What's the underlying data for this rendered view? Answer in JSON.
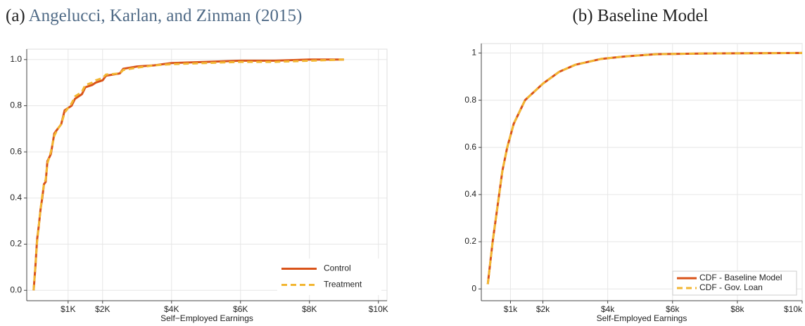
{
  "chart_data": [
    {
      "type": "line",
      "panel_label": "(a)",
      "title": "Angelucci, Karlan, and Zinman (2015)",
      "xlabel": "Self−Employed Earnings",
      "x": [
        0,
        50,
        100,
        150,
        200,
        250,
        300,
        350,
        400,
        500,
        600,
        700,
        800,
        900,
        1000,
        1100,
        1200,
        1400,
        1500,
        1700,
        1800,
        2000,
        2100,
        2500,
        2600,
        3000,
        3500,
        4000,
        5000,
        6000,
        7000,
        8000,
        9000
      ],
      "series": [
        {
          "name": "Control",
          "color": "#d95319",
          "line_style": "solid",
          "values": [
            0,
            0.1,
            0.22,
            0.28,
            0.35,
            0.4,
            0.46,
            0.47,
            0.56,
            0.59,
            0.68,
            0.7,
            0.72,
            0.78,
            0.79,
            0.8,
            0.83,
            0.85,
            0.88,
            0.89,
            0.9,
            0.91,
            0.93,
            0.94,
            0.96,
            0.97,
            0.975,
            0.985,
            0.99,
            0.995,
            0.995,
            1,
            1
          ]
        },
        {
          "name": "Treatment",
          "color": "#f2b632",
          "line_style": "dashed",
          "values": [
            0,
            0.1,
            0.21,
            0.28,
            0.35,
            0.41,
            0.46,
            0.48,
            0.55,
            0.6,
            0.67,
            0.7,
            0.72,
            0.77,
            0.79,
            0.81,
            0.84,
            0.86,
            0.89,
            0.9,
            0.91,
            0.92,
            0.935,
            0.94,
            0.955,
            0.965,
            0.975,
            0.98,
            0.985,
            0.99,
            0.99,
            0.995,
            1
          ]
        }
      ],
      "xlim": [
        -200,
        10250
      ],
      "ylim": [
        -0.045,
        1.045
      ],
      "xticks": [
        {
          "value": 1000,
          "label": "$1K"
        },
        {
          "value": 2000,
          "label": "$2K"
        },
        {
          "value": 4000,
          "label": "$4K"
        },
        {
          "value": 6000,
          "label": "$6K"
        },
        {
          "value": 8000,
          "label": "$8K"
        },
        {
          "value": 10000,
          "label": "$10K"
        }
      ],
      "yticks": [
        {
          "value": 0,
          "label": "0.0"
        },
        0.2,
        0.4,
        0.6,
        0.8,
        {
          "value": 1,
          "label": "1.0"
        }
      ],
      "grid": true,
      "legend": "lower right"
    },
    {
      "type": "line",
      "panel_label": "(b)",
      "title": "Baseline Model",
      "xlabel": "Self-Employed Earnings",
      "x": [
        300,
        450,
        600,
        750,
        900,
        1100,
        1450,
        2000,
        2500,
        3000,
        3800,
        4500,
        5500,
        7000,
        10000
      ],
      "series": [
        {
          "name": "CDF - Baseline Model",
          "color": "#d95319",
          "line_style": "solid",
          "values": [
            0.02,
            0.2,
            0.35,
            0.5,
            0.6,
            0.7,
            0.8,
            0.87,
            0.92,
            0.95,
            0.975,
            0.985,
            0.995,
            0.998,
            1
          ]
        },
        {
          "name": "CDF - Gov. Loan",
          "color": "#f2b632",
          "line_style": "dashed",
          "values": [
            0.02,
            0.2,
            0.35,
            0.5,
            0.6,
            0.7,
            0.8,
            0.87,
            0.92,
            0.95,
            0.975,
            0.985,
            0.995,
            0.998,
            1
          ]
        }
      ],
      "xlim": [
        100,
        10000
      ],
      "ylim": [
        -0.05,
        1.04
      ],
      "xticks": [
        {
          "value": 1000,
          "label": "$1k"
        },
        {
          "value": 2000,
          "label": "$2k"
        },
        {
          "value": 4000,
          "label": "$4k"
        },
        {
          "value": 6000,
          "label": "$6k"
        },
        {
          "value": 8000,
          "label": "$8k"
        },
        {
          "value": 10000,
          "label": "$10k"
        }
      ],
      "yticks": [
        0,
        0.2,
        0.4,
        0.6,
        0.8,
        1
      ],
      "grid": true,
      "legend": "lower right"
    }
  ]
}
